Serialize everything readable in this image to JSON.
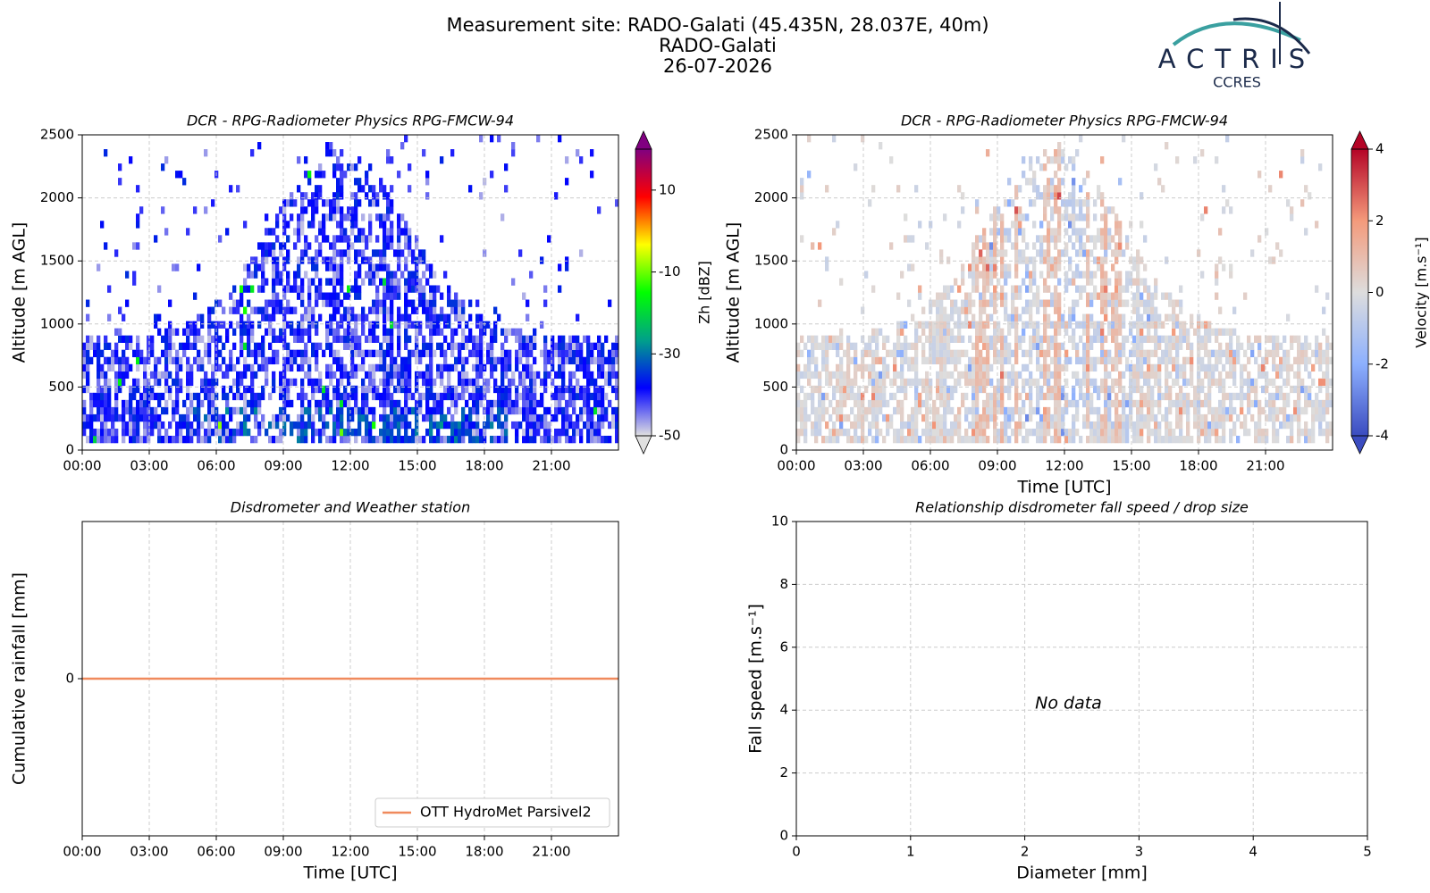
{
  "header": {
    "title": "Measurement site: RADO-Galati (45.435N, 28.037E, 40m)",
    "subtitle": "RADO-Galati",
    "date": "26-07-2026",
    "logo": "ACTRIS",
    "logo_sub": "CCRES"
  },
  "chart_data": [
    {
      "type": "heatmap",
      "title": "DCR - RPG-Radiometer Physics RPG-FMCW-94",
      "ylabel": "Altitude [m AGL]",
      "xlim": [
        0,
        24
      ],
      "xticks": [
        {
          "value": 0,
          "label": "00:00"
        },
        {
          "value": 3,
          "label": "03:00"
        },
        {
          "value": 6,
          "label": "06:00"
        },
        {
          "value": 9,
          "label": "09:00"
        },
        {
          "value": 12,
          "label": "12:00"
        },
        {
          "value": 15,
          "label": "15:00"
        },
        {
          "value": 18,
          "label": "18:00"
        },
        {
          "value": 21,
          "label": "21:00"
        }
      ],
      "ylim": [
        0,
        2500
      ],
      "yticks": [
        0,
        500,
        1000,
        1500,
        2000,
        2500
      ],
      "grid": true,
      "colorbar": {
        "label": "Zh [dBZ]",
        "lim": [
          -50,
          20
        ],
        "ticks": [
          -50,
          -30,
          -10,
          10
        ],
        "colormap": [
          "#e0e0e0",
          "#0000ff",
          "#00a08a",
          "#00ff00",
          "#ffff00",
          "#ff0000",
          "#800080"
        ]
      }
    },
    {
      "type": "heatmap",
      "title": "DCR - RPG-Radiometer Physics RPG-FMCW-94",
      "ylabel": "Altitude [m AGL]",
      "xlabel": "Time [UTC]",
      "xlim": [
        0,
        24
      ],
      "xticks": [
        {
          "value": 0,
          "label": "00:00"
        },
        {
          "value": 3,
          "label": "03:00"
        },
        {
          "value": 6,
          "label": "06:00"
        },
        {
          "value": 9,
          "label": "09:00"
        },
        {
          "value": 12,
          "label": "12:00"
        },
        {
          "value": 15,
          "label": "15:00"
        },
        {
          "value": 18,
          "label": "18:00"
        },
        {
          "value": 21,
          "label": "21:00"
        }
      ],
      "ylim": [
        0,
        2500
      ],
      "yticks": [
        0,
        500,
        1000,
        1500,
        2000,
        2500
      ],
      "grid": true,
      "colorbar": {
        "label": "Velocity [m.s⁻¹]",
        "lim": [
          -4,
          4
        ],
        "ticks": [
          -4,
          -2,
          0,
          2,
          4
        ],
        "colormap": [
          "#3b4cc0",
          "#8db0fe",
          "#dddddd",
          "#f49a7b",
          "#b40426"
        ]
      }
    },
    {
      "type": "line",
      "title": "Disdrometer and Weather station",
      "ylabel": "Cumulative rainfall [mm]",
      "xlabel": "Time [UTC]",
      "xlim": [
        0,
        24
      ],
      "xticks": [
        {
          "value": 0,
          "label": "00:00"
        },
        {
          "value": 3,
          "label": "03:00"
        },
        {
          "value": 6,
          "label": "06:00"
        },
        {
          "value": 9,
          "label": "09:00"
        },
        {
          "value": 12,
          "label": "12:00"
        },
        {
          "value": 15,
          "label": "15:00"
        },
        {
          "value": 18,
          "label": "18:00"
        },
        {
          "value": 21,
          "label": "21:00"
        }
      ],
      "ylim": [
        -1,
        1
      ],
      "yticks": [
        0
      ],
      "grid": true,
      "legend": "lower right",
      "series": [
        {
          "name": "OTT HydroMet Parsivel2",
          "color": "#f08a5d",
          "x": [
            0,
            24
          ],
          "values": [
            0,
            0
          ]
        }
      ]
    },
    {
      "type": "scatter",
      "title": "Relationship disdrometer fall speed / drop size",
      "ylabel": "Fall speed [m.s⁻¹]",
      "xlabel": "Diameter [mm]",
      "xlim": [
        0,
        5
      ],
      "xticks": [
        0,
        1,
        2,
        3,
        4,
        5
      ],
      "ylim": [
        0,
        10
      ],
      "yticks": [
        0,
        2,
        4,
        6,
        8,
        10
      ],
      "grid": true,
      "annotation": "No data",
      "x": [],
      "values": []
    }
  ]
}
